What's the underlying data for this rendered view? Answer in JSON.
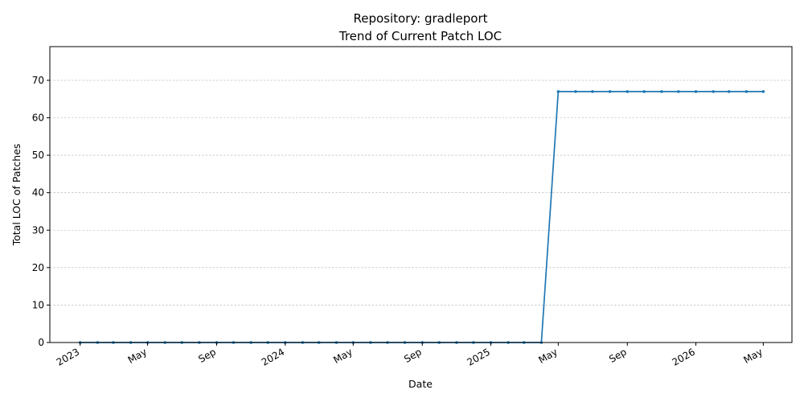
{
  "chart_data": {
    "type": "line",
    "title": "Repository: gradleport",
    "subtitle": "Trend of Current Patch LOC",
    "xlabel": "Date",
    "ylabel": "Total LOC of Patches",
    "x_range": [
      "2022-11-08",
      "2026-06-21"
    ],
    "ylim": [
      0,
      79
    ],
    "yticks": [
      0,
      10,
      20,
      30,
      40,
      50,
      60,
      70
    ],
    "grid": "y-dashed",
    "color": "#1f77b4",
    "xticks": [
      {
        "date": "2023-01-01",
        "label": "2023"
      },
      {
        "date": "2023-05-01",
        "label": "May"
      },
      {
        "date": "2023-09-01",
        "label": "Sep"
      },
      {
        "date": "2024-01-01",
        "label": "2024"
      },
      {
        "date": "2024-05-01",
        "label": "May"
      },
      {
        "date": "2024-09-01",
        "label": "Sep"
      },
      {
        "date": "2025-01-01",
        "label": "2025"
      },
      {
        "date": "2025-05-01",
        "label": "May"
      },
      {
        "date": "2025-09-01",
        "label": "Sep"
      },
      {
        "date": "2026-01-01",
        "label": "2026"
      },
      {
        "date": "2026-05-01",
        "label": "May"
      }
    ],
    "series": [
      {
        "x": [
          "2023-01-01",
          "2023-02-01",
          "2023-03-01",
          "2023-04-01",
          "2023-05-01",
          "2023-06-01",
          "2023-07-01",
          "2023-08-01",
          "2023-09-01",
          "2023-10-01",
          "2023-11-01",
          "2023-12-01",
          "2024-01-01",
          "2024-02-01",
          "2024-03-01",
          "2024-04-01",
          "2024-05-01",
          "2024-06-01",
          "2024-07-01",
          "2024-08-01",
          "2024-09-01",
          "2024-10-01",
          "2024-11-01",
          "2024-12-01",
          "2025-01-01",
          "2025-02-01",
          "2025-03-01",
          "2025-04-01",
          "2025-05-01",
          "2025-06-01",
          "2025-07-01",
          "2025-08-01",
          "2025-09-01",
          "2025-10-01",
          "2025-11-01",
          "2025-12-01",
          "2026-01-01",
          "2026-02-01",
          "2026-03-01",
          "2026-04-01",
          "2026-05-01"
        ],
        "y": [
          0,
          0,
          0,
          0,
          0,
          0,
          0,
          0,
          0,
          0,
          0,
          0,
          0,
          0,
          0,
          0,
          0,
          0,
          0,
          0,
          0,
          0,
          0,
          0,
          0,
          0,
          0,
          0,
          67,
          67,
          67,
          67,
          67,
          67,
          67,
          67,
          67,
          67,
          67,
          67,
          67
        ]
      }
    ]
  }
}
